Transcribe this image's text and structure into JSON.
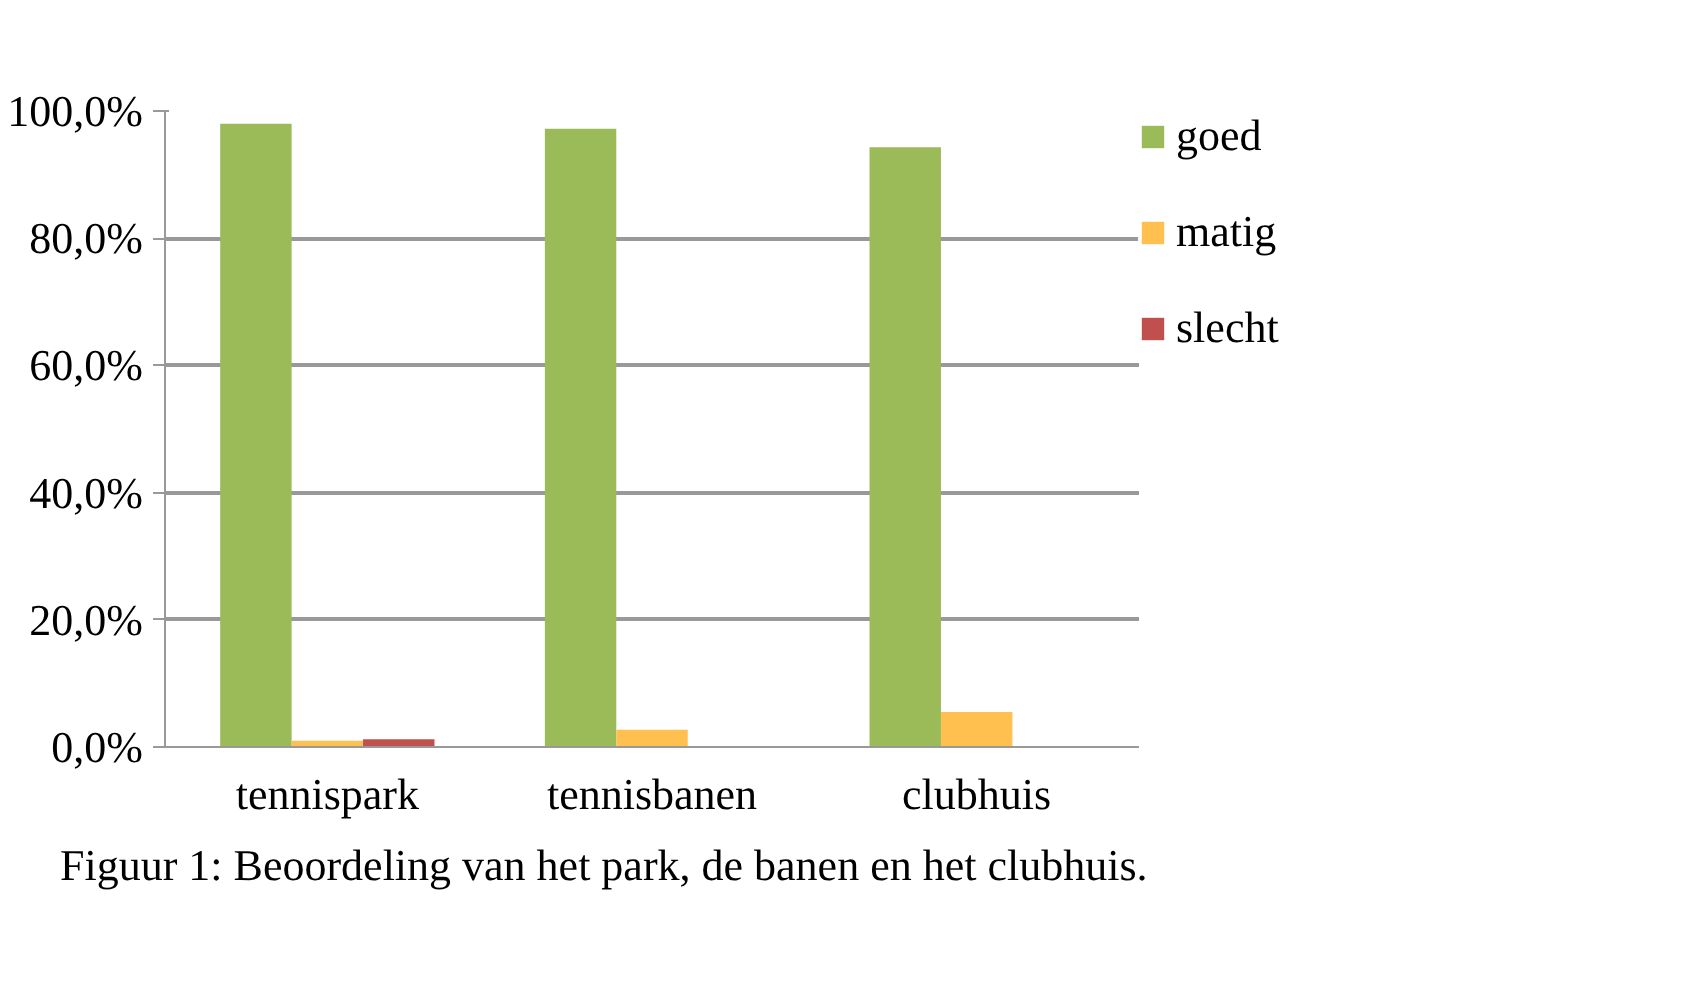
{
  "chart_data": {
    "type": "bar",
    "categories": [
      "tennispark",
      "tennisbanen",
      "clubhuis"
    ],
    "series": [
      {
        "name": "goed",
        "color": "#9bbb59",
        "values": [
          98.0,
          97.2,
          94.3
        ]
      },
      {
        "name": "matig",
        "color": "#ffc04f",
        "values": [
          1.0,
          2.7,
          5.5
        ]
      },
      {
        "name": "slecht",
        "color": "#c0504d",
        "values": [
          1.2,
          null,
          null
        ]
      }
    ],
    "ylim": [
      0,
      100
    ],
    "yticks": [
      {
        "value": 0,
        "label": "0,0%"
      },
      {
        "value": 20,
        "label": "20,0%"
      },
      {
        "value": 40,
        "label": "40,0%"
      },
      {
        "value": 60,
        "label": "60,0%"
      },
      {
        "value": 80,
        "label": "80,0%"
      },
      {
        "value": 100,
        "label": "100,0%"
      }
    ],
    "grid": "y",
    "legend": "right",
    "annotations": [
      "Figuur 1: Beoordeling van het park, de banen en het clubhuis."
    ]
  }
}
